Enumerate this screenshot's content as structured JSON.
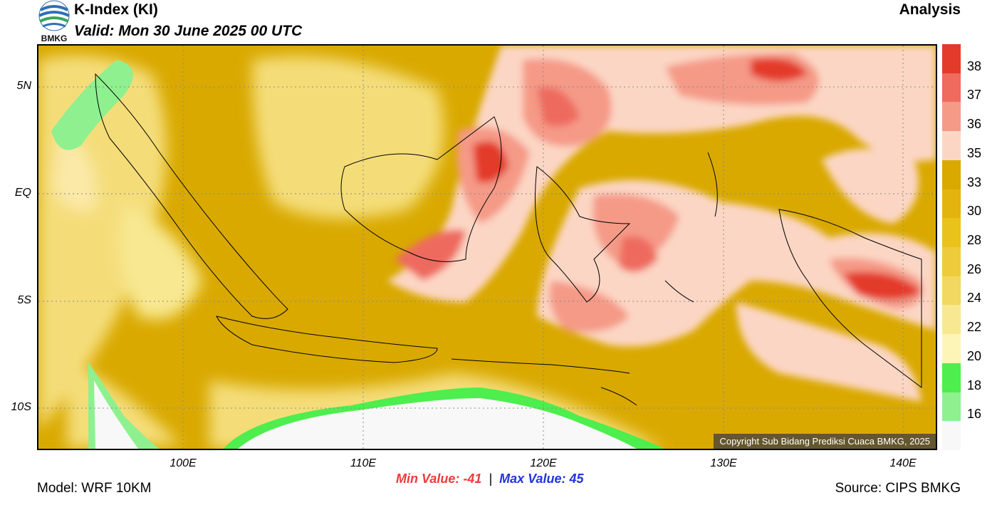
{
  "header": {
    "logo_text": "BMKG",
    "title": "K-Index (KI)",
    "valid": "Valid: Mon 30 June 2025 00 UTC",
    "product_type": "Analysis"
  },
  "map": {
    "lat_labels": [
      "5N",
      "EQ",
      "5S",
      "10S"
    ],
    "lon_labels": [
      "100E",
      "110E",
      "120E",
      "130E",
      "140E"
    ],
    "copyright": "Copyright Sub Bidang Prediksi Cuaca BMKG, 2025",
    "colors": {
      "base": "#d9a900",
      "light_yellow": "#f4dd79",
      "pale": "#fbe9a8",
      "peach": "#fcd6c4",
      "salmon": "#f59a87",
      "coral": "#ee6b5e",
      "red": "#e33a2b",
      "green_light": "#8ff08f",
      "green": "#4dee4d",
      "white": "#f8f8f8",
      "coast": "#000000",
      "border_gray": "#9a9a9a"
    }
  },
  "colorbar": {
    "labels": [
      "38",
      "37",
      "36",
      "35",
      "33",
      "30",
      "28",
      "26",
      "24",
      "22",
      "20",
      "18",
      "16"
    ],
    "colors": [
      "#e33a2b",
      "#ee6b5e",
      "#f59a87",
      "#fcd6c4",
      "#d9a900",
      "#e3b40d",
      "#e9c21c",
      "#eecb3a",
      "#f2d861",
      "#f8e891",
      "#fdf5b7",
      "#4dee4d",
      "#8ff08f",
      "#f8f8f8"
    ]
  },
  "stats": {
    "min_label": "Min Value: -41",
    "separator": "|",
    "max_label": "Max Value:  45"
  },
  "footer": {
    "model": "Model: WRF 10KM",
    "source": "Source: CIPS BMKG"
  }
}
